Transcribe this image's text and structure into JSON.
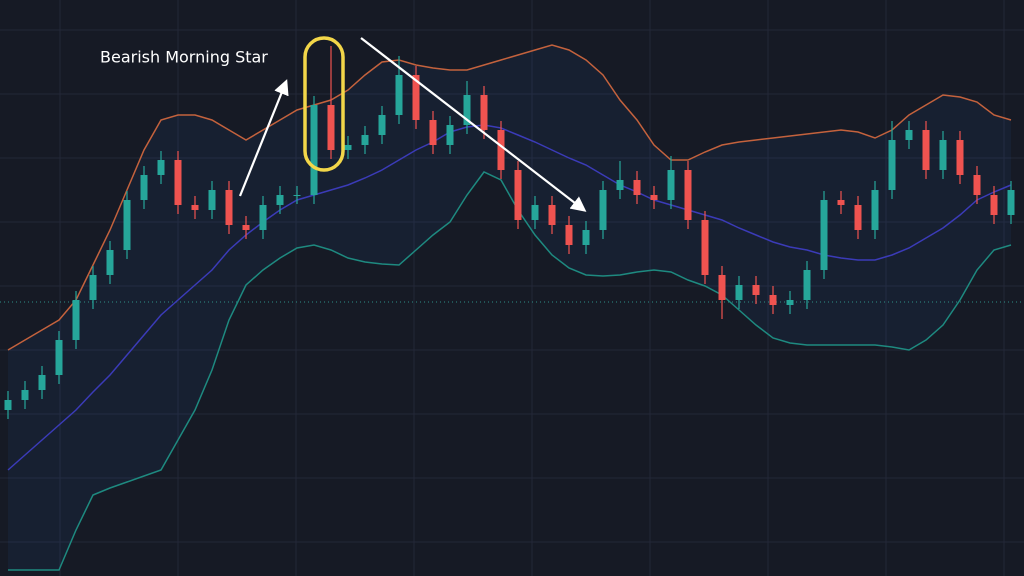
{
  "chart_data": {
    "type": "candlestick",
    "annotation": "Bearish Morning Star",
    "ylim": [
      0,
      576
    ],
    "grid": true,
    "up_color": "#26a69a",
    "down_color": "#ef5350",
    "open": [
      166,
      176,
      186,
      201,
      236,
      276,
      301,
      326,
      376,
      401,
      416,
      371,
      366,
      386,
      351,
      346,
      371,
      381,
      381,
      471,
      426,
      431,
      441,
      461,
      501,
      456,
      431,
      451,
      481,
      446,
      406,
      356,
      371,
      351,
      331,
      346,
      386,
      396,
      381,
      376,
      406,
      356,
      301,
      276,
      291,
      281,
      271,
      276,
      306,
      376,
      371,
      346,
      386,
      436,
      446,
      406,
      436,
      401,
      381,
      361
    ],
    "high": [
      185,
      195,
      210,
      245,
      285,
      310,
      335,
      385,
      410,
      425,
      425,
      380,
      395,
      395,
      360,
      380,
      390,
      390,
      480,
      530,
      440,
      450,
      470,
      520,
      510,
      465,
      460,
      495,
      490,
      455,
      415,
      380,
      380,
      360,
      355,
      395,
      415,
      405,
      390,
      420,
      415,
      365,
      310,
      300,
      300,
      290,
      285,
      315,
      385,
      385,
      380,
      395,
      455,
      455,
      455,
      445,
      445,
      410,
      390,
      395
    ],
    "low": [
      157,
      167,
      177,
      192,
      227,
      267,
      292,
      317,
      367,
      392,
      362,
      357,
      357,
      342,
      337,
      337,
      362,
      372,
      372,
      417,
      417,
      422,
      432,
      452,
      447,
      422,
      422,
      442,
      437,
      397,
      347,
      347,
      342,
      322,
      322,
      337,
      377,
      372,
      367,
      367,
      347,
      292,
      257,
      267,
      272,
      262,
      262,
      267,
      297,
      362,
      337,
      337,
      377,
      427,
      397,
      397,
      392,
      372,
      352,
      352
    ],
    "close": [
      176,
      186,
      201,
      236,
      276,
      301,
      326,
      376,
      401,
      416,
      371,
      366,
      386,
      351,
      346,
      371,
      381,
      381,
      471,
      426,
      431,
      441,
      461,
      501,
      456,
      431,
      451,
      481,
      446,
      406,
      356,
      371,
      351,
      331,
      346,
      386,
      396,
      381,
      376,
      406,
      356,
      301,
      276,
      291,
      281,
      271,
      276,
      306,
      376,
      371,
      346,
      386,
      436,
      446,
      406,
      436,
      401,
      381,
      361,
      386
    ],
    "reference_line": 274,
    "overlays": [
      {
        "color": "#c4623d",
        "values": [
          226,
          236,
          246,
          256,
          276,
          311,
          346,
          386,
          426,
          456,
          461,
          461,
          456,
          446,
          436,
          446,
          456,
          466,
          471,
          476,
          486,
          501,
          514,
          516,
          511,
          508,
          506,
          506,
          511,
          516,
          521,
          526,
          531,
          526,
          516,
          501,
          476,
          456,
          431,
          416,
          416,
          424,
          431,
          434,
          436,
          438,
          440,
          442,
          444,
          446,
          444,
          438,
          446,
          461,
          471,
          481,
          479,
          474,
          461,
          456
        ]
      },
      {
        "color": "#3b3bb8",
        "values": [
          106,
          121,
          136,
          151,
          166,
          184,
          201,
          221,
          241,
          261,
          276,
          291,
          306,
          326,
          341,
          354,
          366,
          376,
          381,
          386,
          391,
          398,
          406,
          416,
          426,
          434,
          444,
          449,
          451,
          448,
          441,
          434,
          426,
          418,
          411,
          401,
          391,
          384,
          376,
          371,
          366,
          361,
          356,
          348,
          341,
          334,
          329,
          326,
          321,
          318,
          316,
          316,
          321,
          328,
          338,
          348,
          361,
          376,
          384,
          391
        ]
      },
      {
        "color": "#1e8a80",
        "values": [
          6,
          6,
          6,
          6,
          46,
          81,
          88,
          94,
          100,
          106,
          136,
          166,
          206,
          256,
          291,
          306,
          318,
          328,
          331,
          326,
          318,
          314,
          312,
          311,
          326,
          341,
          354,
          381,
          404,
          396,
          366,
          341,
          321,
          308,
          301,
          300,
          301,
          304,
          306,
          304,
          296,
          290,
          281,
          266,
          251,
          238,
          233,
          231,
          231,
          231,
          231,
          231,
          229,
          226,
          236,
          251,
          276,
          306,
          326,
          331
        ]
      }
    ]
  }
}
